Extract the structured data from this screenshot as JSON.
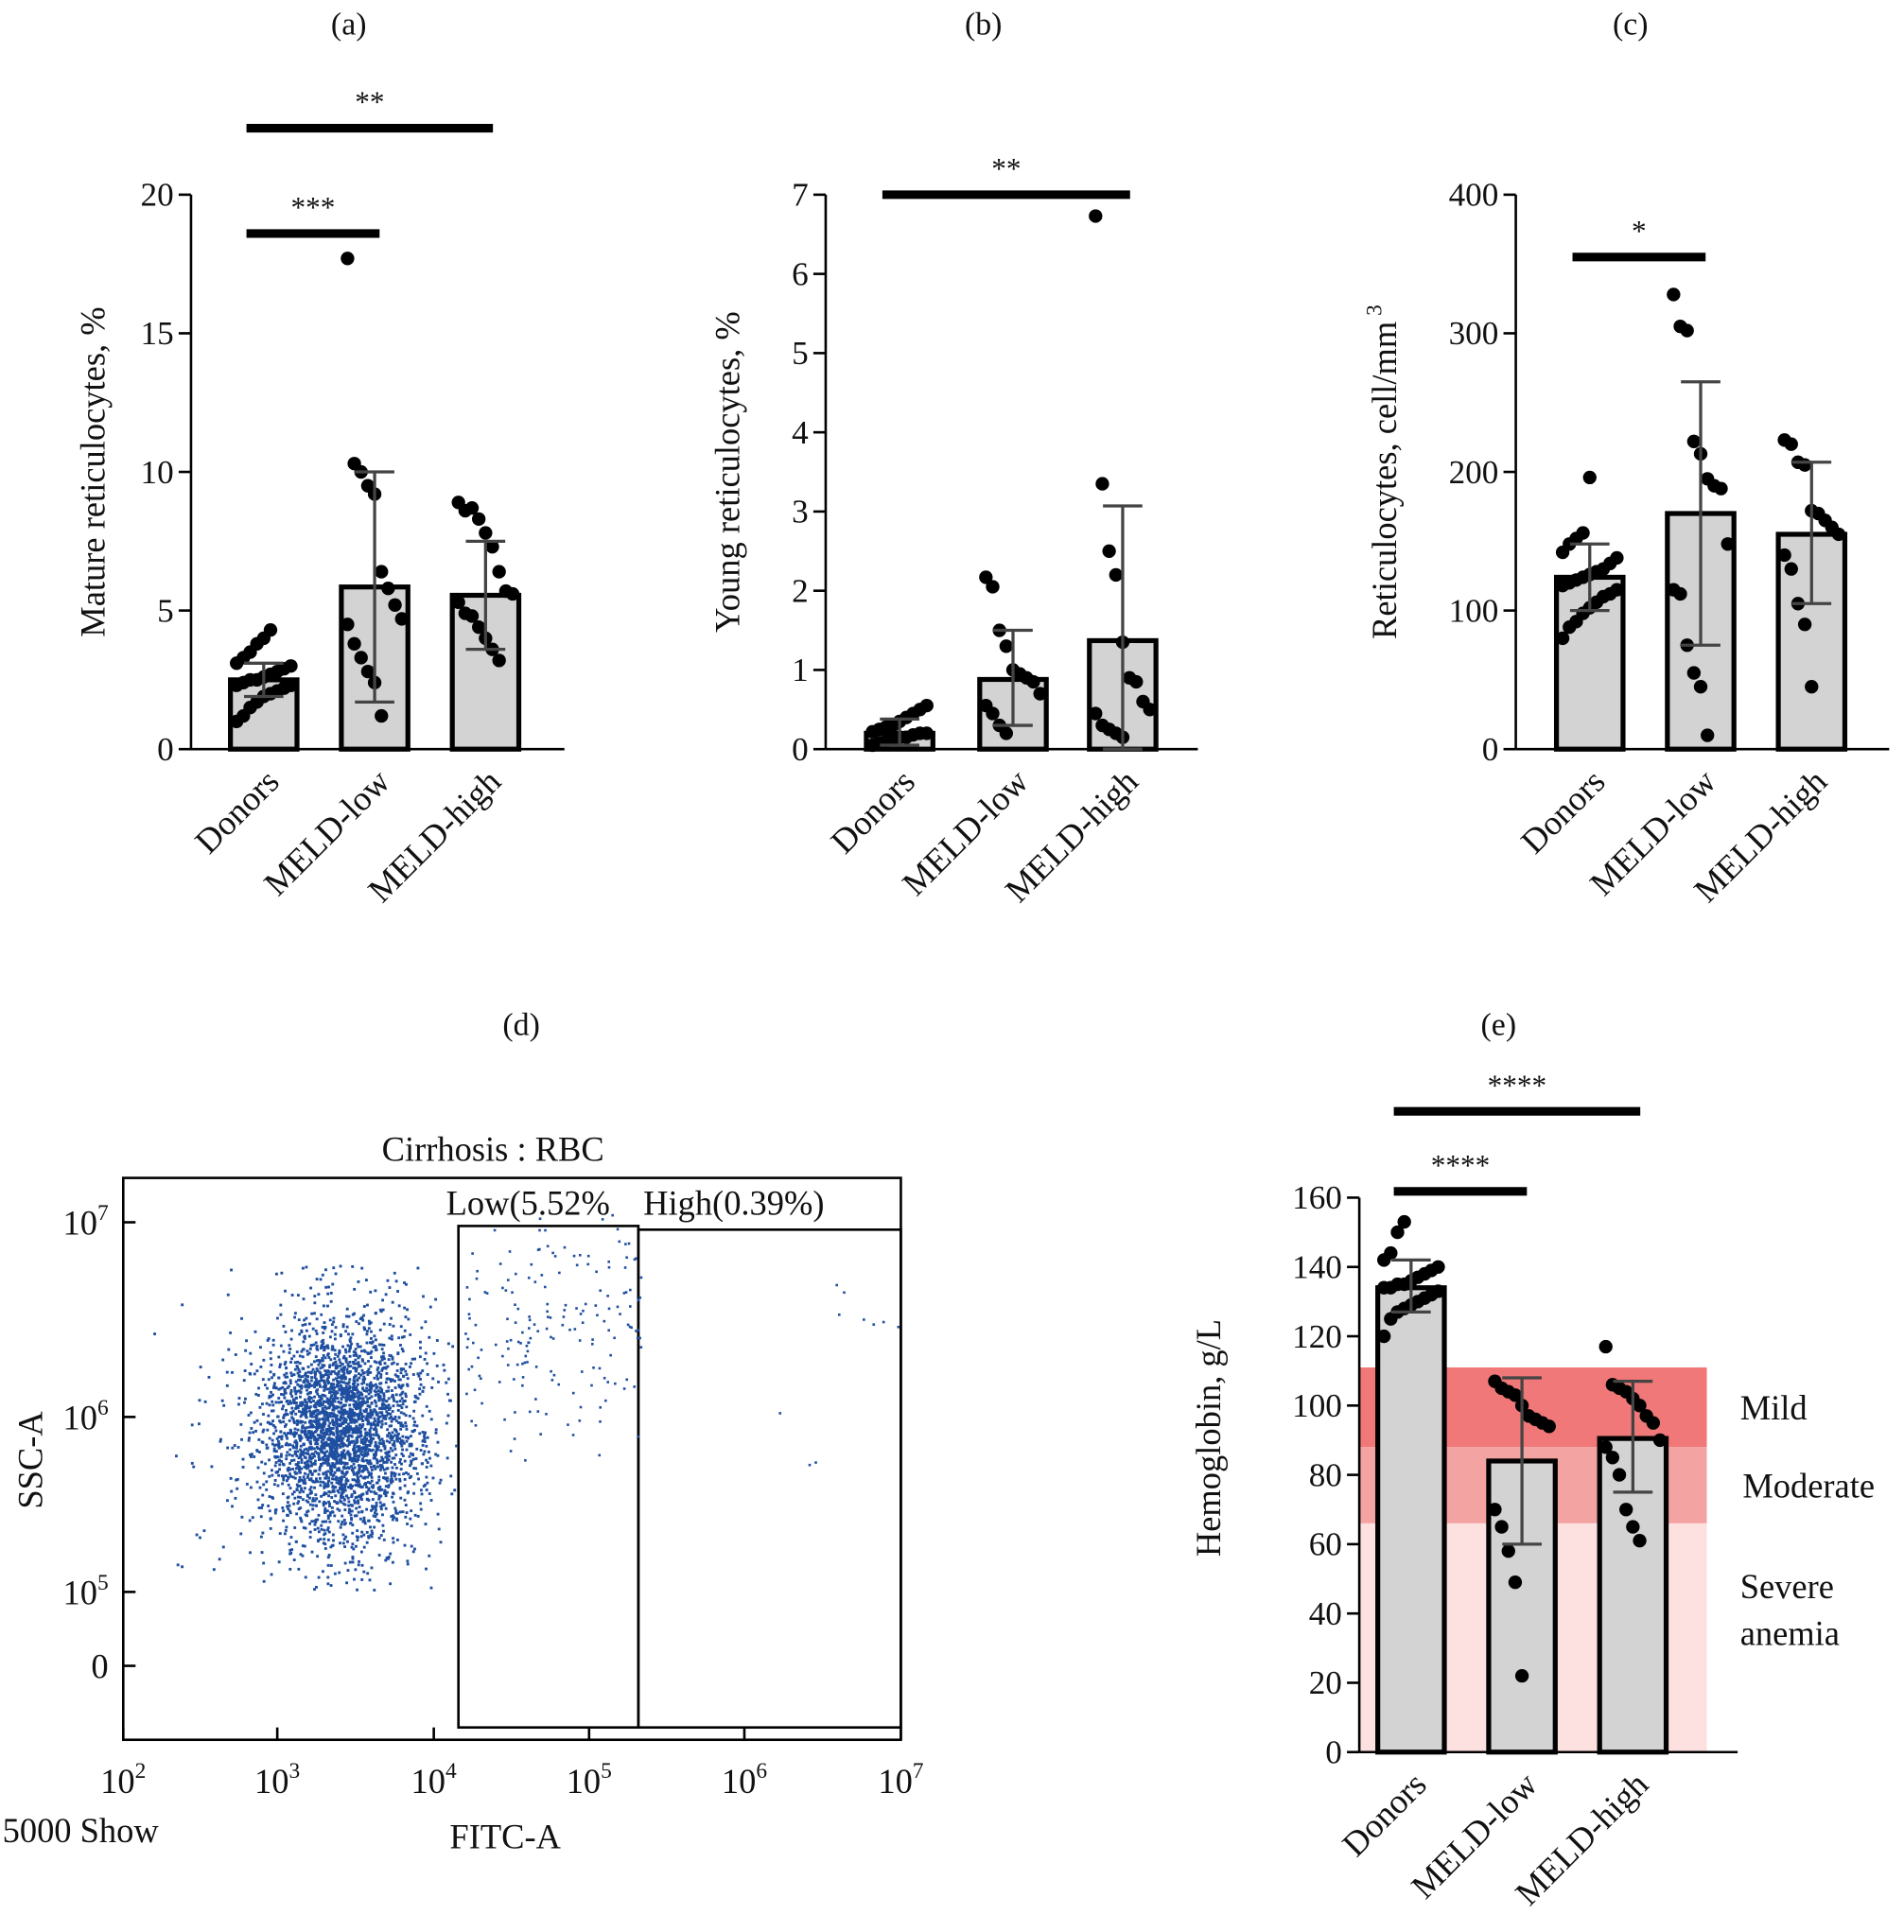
{
  "colors": {
    "bar_fill": "#d3d3d3",
    "point": "#000000",
    "flow_point": "#1f4fa0",
    "mild": "#f07878",
    "moderate": "#f4a3a3",
    "severe": "#fde0e0"
  },
  "chart_data": [
    {
      "id": "a",
      "panel_label": "(a)",
      "type": "bar",
      "ylabel": "Mature reticulocytes, %",
      "ylim": [
        0,
        20
      ],
      "yticks": [
        0,
        5,
        10,
        15,
        20
      ],
      "categories": [
        "Donors",
        "MELD-low",
        "MELD-high"
      ],
      "mean": [
        2.5,
        5.85,
        5.55
      ],
      "err_low": [
        1.9,
        1.7,
        3.6
      ],
      "err_high": [
        3.1,
        10.0,
        7.5
      ],
      "points": [
        [
          1.0,
          1.2,
          1.5,
          1.7,
          1.9,
          2.0,
          2.1,
          2.2,
          2.3,
          2.3,
          2.4,
          2.5,
          2.5,
          2.6,
          2.7,
          2.8,
          2.9,
          3.0,
          3.1,
          3.3,
          3.5,
          3.8,
          4.0,
          4.3
        ],
        [
          17.7,
          10.3,
          10.0,
          9.5,
          9.2,
          6.4,
          5.8,
          5.2,
          4.7,
          4.5,
          3.8,
          3.3,
          2.8,
          2.4,
          1.2
        ],
        [
          8.9,
          8.6,
          8.7,
          8.3,
          7.8,
          7.3,
          6.4,
          5.7,
          5.6,
          5.3,
          4.9,
          4.8,
          4.4,
          4.0,
          3.6,
          3.2
        ]
      ],
      "significance": [
        {
          "from": 0,
          "to": 1,
          "label": "***",
          "level": 18.6
        },
        {
          "from": 0,
          "to": 2,
          "label": "**",
          "level": 22.4
        }
      ]
    },
    {
      "id": "b",
      "panel_label": "(b)",
      "type": "bar",
      "ylabel": "Young reticulocytes, %",
      "ylim": [
        0,
        7
      ],
      "yticks": [
        0,
        1,
        2,
        3,
        4,
        5,
        6,
        7
      ],
      "categories": [
        "Donors",
        "MELD-low",
        "MELD-high"
      ],
      "mean": [
        0.2,
        0.88,
        1.37
      ],
      "err_low": [
        0.05,
        0.3,
        0.0
      ],
      "err_high": [
        0.38,
        1.5,
        3.07
      ],
      "points": [
        [
          0.05,
          0.08,
          0.1,
          0.12,
          0.15,
          0.15,
          0.18,
          0.2,
          0.2,
          0.22,
          0.25,
          0.28,
          0.3,
          0.35,
          0.4,
          0.45,
          0.5,
          0.55
        ],
        [
          2.17,
          2.05,
          1.5,
          1.3,
          1.0,
          0.95,
          0.9,
          0.85,
          0.7,
          0.55,
          0.45,
          0.3,
          0.2
        ],
        [
          6.73,
          3.35,
          2.5,
          2.2,
          1.35,
          0.9,
          0.85,
          0.6,
          0.5,
          0.45,
          0.3,
          0.25,
          0.2,
          0.15
        ]
      ],
      "significance": [
        {
          "from": 0,
          "to": 2,
          "label": "**",
          "level": 7.0
        }
      ]
    },
    {
      "id": "c",
      "panel_label": "(c)",
      "type": "bar",
      "ylabel": "Reticulocytes, cell/mm",
      "ylabel_sup": "3",
      "ylim": [
        0,
        400
      ],
      "yticks": [
        0,
        100,
        200,
        300,
        400
      ],
      "categories": [
        "Donors",
        "MELD-low",
        "MELD-high"
      ],
      "mean": [
        124,
        170,
        155
      ],
      "err_low": [
        100,
        75,
        105
      ],
      "err_high": [
        148,
        265,
        207
      ],
      "points": [
        [
          80,
          88,
          92,
          98,
          102,
          106,
          110,
          112,
          115,
          118,
          120,
          122,
          124,
          126,
          128,
          130,
          134,
          138,
          142,
          148,
          152,
          156,
          196
        ],
        [
          328,
          305,
          302,
          222,
          213,
          195,
          190,
          188,
          148,
          115,
          112,
          75,
          55,
          45,
          10
        ],
        [
          223,
          220,
          207,
          205,
          172,
          170,
          165,
          160,
          155,
          140,
          130,
          105,
          90,
          45
        ]
      ],
      "significance": [
        {
          "from": 0,
          "to": 1,
          "label": "*",
          "level": 355
        }
      ]
    },
    {
      "id": "d",
      "panel_label": "(d)",
      "type": "scatter",
      "title": "Cirrhosis : RBC",
      "xlabel": "FITC-A",
      "ylabel": "SSC-A",
      "scale": "log",
      "xticks": [
        "10|2",
        "10|3",
        "10|4",
        "10|5",
        "10|6",
        "10|7"
      ],
      "yticks": [
        "10|7",
        "10|6",
        "10|5",
        "0"
      ],
      "gates": [
        {
          "label": "Low(5.52%",
          "percent": 5.52
        },
        {
          "label": "High(0.39%)",
          "percent": 0.39
        }
      ],
      "events_note": "5000 Show"
    },
    {
      "id": "e",
      "panel_label": "(e)",
      "type": "bar",
      "ylabel": "Hemoglobin, g/L",
      "ylim": [
        0,
        160
      ],
      "yticks": [
        0,
        20,
        40,
        60,
        80,
        100,
        120,
        140,
        160
      ],
      "categories": [
        "Donors",
        "MELD-low",
        "MELD-high"
      ],
      "mean": [
        134,
        84,
        90.5
      ],
      "err_low": [
        127,
        60,
        75
      ],
      "err_high": [
        142,
        108,
        107
      ],
      "points": [
        [
          120,
          125,
          127,
          128,
          129,
          130,
          131,
          132,
          133,
          134,
          134,
          135,
          135,
          136,
          137,
          138,
          139,
          140,
          142,
          144,
          150,
          153
        ],
        [
          107,
          105,
          104,
          103,
          100,
          97,
          96,
          95,
          94,
          70,
          65,
          58,
          49,
          22
        ],
        [
          117,
          106,
          105,
          104,
          102,
          100,
          97,
          95,
          90,
          88,
          85,
          80,
          70,
          65,
          61
        ]
      ],
      "bands": [
        {
          "label": "Mild",
          "from": 88,
          "to": 111
        },
        {
          "label": "Moderate",
          "from": 66,
          "to": 88
        },
        {
          "label": "Severe",
          "label2": "anemia",
          "from": 0,
          "to": 66
        }
      ],
      "significance": [
        {
          "from": 0,
          "to": 1,
          "label": "****",
          "level": 161.8
        },
        {
          "from": 0,
          "to": 2,
          "label": "****",
          "level": 184.9
        }
      ]
    }
  ]
}
